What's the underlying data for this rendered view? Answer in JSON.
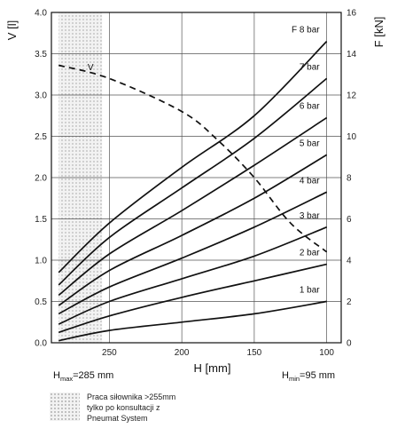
{
  "chart_data": {
    "type": "line",
    "ylabel_left": "V [l]",
    "ylabel_right": "F [kN]",
    "xlabel": "H [mm]",
    "x_reversed": true,
    "xlim": [
      290,
      90
    ],
    "ylim_left": [
      0,
      4.0
    ],
    "ylim_right": [
      0,
      16
    ],
    "x_ticks": [
      "250",
      "200",
      "150",
      "100"
    ],
    "x_tick_values": [
      250,
      200,
      150,
      100
    ],
    "y_left_ticks": [
      "0.0",
      "0.5",
      "1.0",
      "1.5",
      "2.0",
      "2.5",
      "3.0",
      "3.5",
      "4.0"
    ],
    "y_left_tick_values": [
      0,
      0.5,
      1.0,
      1.5,
      2.0,
      2.5,
      3.0,
      3.5,
      4.0
    ],
    "y_right_ticks": [
      "0",
      "2",
      "4",
      "6",
      "8",
      "10",
      "12",
      "14",
      "16"
    ],
    "y_right_tick_values": [
      0,
      2,
      4,
      6,
      8,
      10,
      12,
      14,
      16
    ],
    "grid": true,
    "hatched_region": {
      "x_from": 285,
      "x_to": 255
    },
    "force_series": [
      {
        "name": "1 bar",
        "x": [
          285,
          250,
          200,
          150,
          100
        ],
        "F_kN": [
          0.1,
          0.6,
          1.0,
          1.4,
          2.0
        ]
      },
      {
        "name": "2 bar",
        "x": [
          285,
          250,
          200,
          150,
          100
        ],
        "F_kN": [
          0.5,
          1.3,
          2.2,
          3.0,
          3.8
        ]
      },
      {
        "name": "3 bar",
        "x": [
          285,
          250,
          200,
          150,
          100
        ],
        "F_kN": [
          0.9,
          2.0,
          3.1,
          4.2,
          5.6
        ]
      },
      {
        "name": "4 bar",
        "x": [
          285,
          250,
          200,
          150,
          100
        ],
        "F_kN": [
          1.4,
          2.7,
          4.1,
          5.6,
          7.3
        ]
      },
      {
        "name": "5 bar",
        "x": [
          285,
          250,
          200,
          150,
          100
        ],
        "F_kN": [
          1.8,
          3.5,
          5.2,
          7.0,
          9.1
        ]
      },
      {
        "name": "6 bar",
        "x": [
          285,
          250,
          200,
          150,
          100
        ],
        "F_kN": [
          2.3,
          4.3,
          6.4,
          8.6,
          10.9
        ]
      },
      {
        "name": "7 bar",
        "x": [
          285,
          250,
          200,
          150,
          100
        ],
        "F_kN": [
          2.8,
          5.1,
          7.5,
          9.9,
          12.8
        ]
      },
      {
        "name": "F 8 bar",
        "x": [
          285,
          250,
          200,
          150,
          100
        ],
        "F_kN": [
          3.4,
          5.8,
          8.5,
          11.0,
          14.6
        ]
      }
    ],
    "volume_series": {
      "name": "V",
      "style": "dashed",
      "x": [
        285,
        250,
        200,
        175,
        150,
        125,
        100
      ],
      "V_l": [
        3.36,
        3.2,
        2.8,
        2.45,
        2.0,
        1.45,
        1.1
      ]
    }
  },
  "labels": {
    "hmax_main": "H",
    "hmax_sub": "max",
    "hmax_rest": "=285 mm",
    "hmin_main": "H",
    "hmin_sub": "min",
    "hmin_rest": "=95 mm"
  },
  "legend": {
    "text": "Praca siłownika >255mm\ntylko po konsultacji z\nPneumat System"
  }
}
